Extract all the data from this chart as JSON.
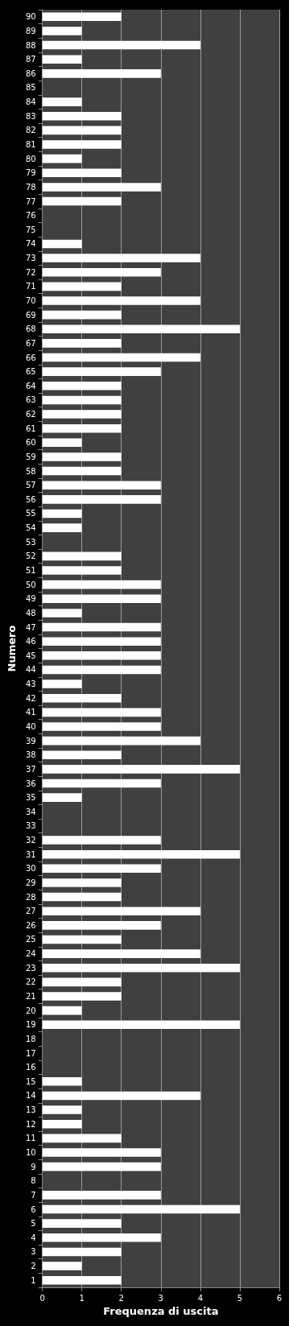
{
  "chart_data": {
    "type": "bar",
    "orientation": "horizontal",
    "xlabel": "Frequenza di uscita",
    "ylabel": "Numero",
    "categories": [
      "90",
      "89",
      "88",
      "87",
      "86",
      "85",
      "84",
      "83",
      "82",
      "81",
      "80",
      "79",
      "78",
      "77",
      "76",
      "75",
      "74",
      "73",
      "72",
      "71",
      "70",
      "69",
      "68",
      "67",
      "66",
      "65",
      "64",
      "63",
      "62",
      "61",
      "60",
      "59",
      "58",
      "57",
      "56",
      "55",
      "54",
      "53",
      "52",
      "51",
      "50",
      "49",
      "48",
      "47",
      "46",
      "45",
      "44",
      "43",
      "42",
      "41",
      "40",
      "39",
      "38",
      "37",
      "36",
      "35",
      "34",
      "33",
      "32",
      "31",
      "30",
      "29",
      "28",
      "27",
      "26",
      "25",
      "24",
      "23",
      "22",
      "21",
      "20",
      "19",
      "18",
      "17",
      "16",
      "15",
      "14",
      "13",
      "12",
      "11",
      "10",
      "9",
      "8",
      "7",
      "6",
      "5",
      "4",
      "3",
      "2",
      "1"
    ],
    "values": [
      2,
      1,
      4,
      1,
      3,
      0,
      1,
      2,
      2,
      2,
      1,
      2,
      3,
      2,
      0,
      0,
      1,
      4,
      3,
      2,
      4,
      2,
      5,
      2,
      4,
      3,
      2,
      2,
      2,
      2,
      1,
      2,
      2,
      3,
      3,
      1,
      1,
      0,
      2,
      2,
      3,
      3,
      1,
      3,
      3,
      3,
      3,
      1,
      2,
      3,
      3,
      4,
      2,
      5,
      3,
      1,
      0,
      0,
      3,
      5,
      3,
      2,
      2,
      4,
      3,
      2,
      4,
      5,
      2,
      2,
      1,
      5,
      0,
      0,
      0,
      1,
      4,
      1,
      1,
      2,
      3,
      3,
      0,
      3,
      5,
      2,
      3,
      2,
      1,
      2
    ],
    "color": "#ffffff",
    "xlim": [
      0,
      6
    ],
    "xticks": [
      0,
      1,
      2,
      3,
      4,
      5,
      6
    ],
    "grid": "x"
  }
}
